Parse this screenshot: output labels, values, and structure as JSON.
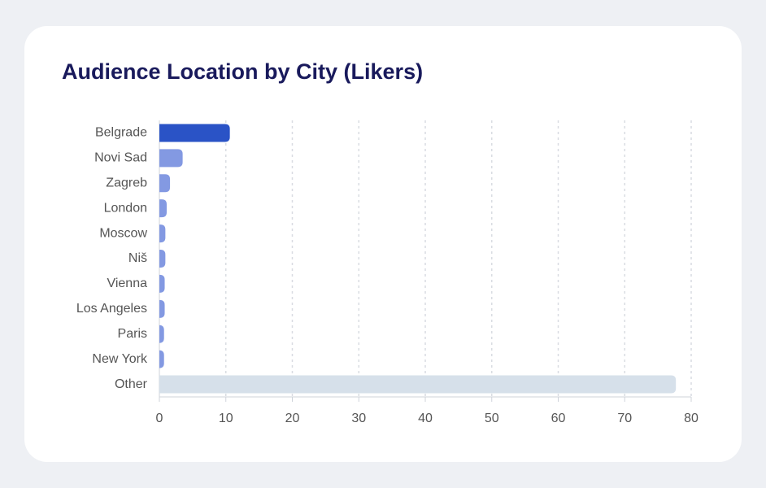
{
  "chart_data": {
    "type": "hbar",
    "title": "Audience Location by City (Likers)",
    "categories": [
      "Belgrade",
      "Novi Sad",
      "Zagreb",
      "London",
      "Moscow",
      "Niš",
      "Vienna",
      "Los Angeles",
      "Paris",
      "New York",
      "Other"
    ],
    "values": [
      10.6,
      3.5,
      1.6,
      1.1,
      0.9,
      0.9,
      0.8,
      0.8,
      0.7,
      0.7,
      77.7
    ],
    "colors": [
      "#2a53c6",
      "#8399e2",
      "#8399e2",
      "#8399e2",
      "#8399e2",
      "#8399e2",
      "#8399e2",
      "#8399e2",
      "#8399e2",
      "#8399e2",
      "#d6e0ea"
    ],
    "xlim": [
      0,
      80
    ],
    "xticks": [
      0,
      10,
      20,
      30,
      40,
      50,
      60,
      70,
      80
    ],
    "grid": true
  }
}
